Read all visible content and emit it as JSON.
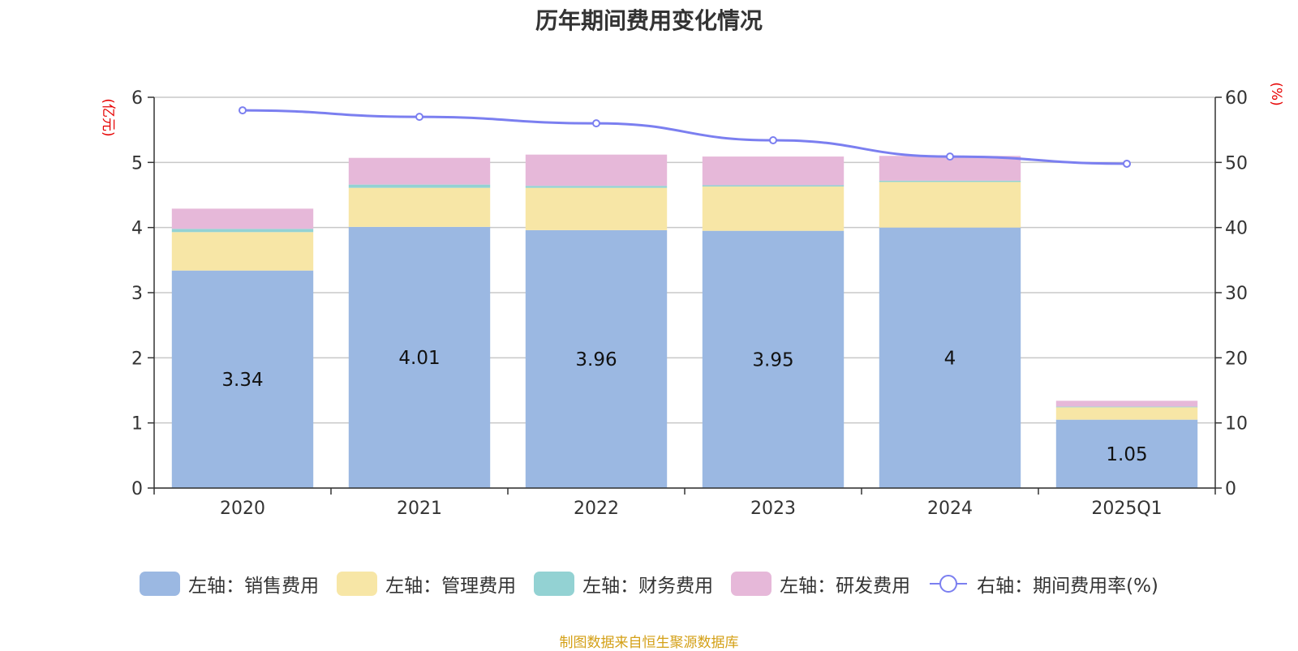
{
  "chart_data": {
    "type": "bar",
    "title": "历年期间费用变化情况",
    "left_unit": "(亿元)",
    "right_unit": "(%)",
    "categories": [
      "2020",
      "2021",
      "2022",
      "2023",
      "2024",
      "2025Q1"
    ],
    "ylim_left": [
      0,
      6
    ],
    "yticks_left": [
      "0",
      "1",
      "2",
      "3",
      "4",
      "5",
      "6"
    ],
    "ylim_right": [
      0,
      60
    ],
    "yticks_right": [
      "0",
      "10",
      "20",
      "30",
      "40",
      "50",
      "60"
    ],
    "series": [
      {
        "name": "左轴：销售费用",
        "axis": "left",
        "kind": "bar",
        "color": "#9bb8e2",
        "values": [
          3.34,
          4.01,
          3.96,
          3.95,
          4.0,
          1.05
        ],
        "labels": [
          "3.34",
          "4.01",
          "3.96",
          "3.95",
          "4",
          "1.05"
        ]
      },
      {
        "name": "左轴：管理费用",
        "axis": "left",
        "kind": "bar",
        "color": "#f7e6a6",
        "values": [
          0.59,
          0.6,
          0.65,
          0.68,
          0.7,
          0.19
        ]
      },
      {
        "name": "左轴：财务费用",
        "axis": "left",
        "kind": "bar",
        "color": "#93d2d3",
        "values": [
          0.05,
          0.05,
          0.03,
          0.02,
          0.02,
          0.01
        ]
      },
      {
        "name": "左轴：研发费用",
        "axis": "left",
        "kind": "bar",
        "color": "#e6b8d9",
        "values": [
          0.31,
          0.41,
          0.48,
          0.44,
          0.38,
          0.09
        ]
      },
      {
        "name": "右轴：期间费用率(%)",
        "axis": "right",
        "kind": "line",
        "color": "#7b7ff0",
        "values": [
          58.0,
          57.0,
          56.0,
          53.4,
          50.9,
          49.8
        ]
      }
    ],
    "grid": true,
    "legend_position": "bottom"
  },
  "source": "制图数据来自恒生聚源数据库"
}
